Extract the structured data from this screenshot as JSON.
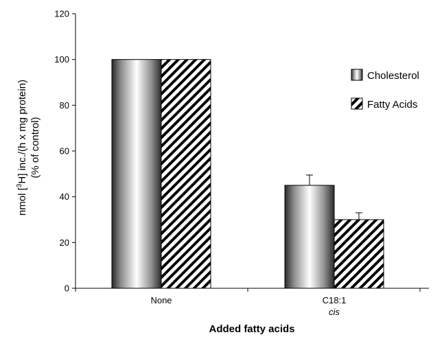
{
  "chart_data": {
    "type": "bar",
    "categories": [
      "None",
      "C18:1"
    ],
    "category_sublabels": [
      "",
      "cis"
    ],
    "series": [
      {
        "name": "Cholesterol",
        "values": [
          100,
          45
        ],
        "errors": [
          0,
          4.5
        ],
        "pattern": "cylinder-gradient"
      },
      {
        "name": "Fatty Acids",
        "values": [
          100,
          30
        ],
        "errors": [
          0,
          3
        ],
        "pattern": "diagonal-hatch"
      }
    ],
    "xlabel": "Added fatty acids",
    "ylabel_line1_pre": "nmol [",
    "ylabel_line1_sup": "3",
    "ylabel_line1_post": "H] inc./(h x mg protein)",
    "ylabel_line2": "(% of control)",
    "ylim": [
      0,
      120
    ],
    "yticks": [
      0,
      20,
      40,
      60,
      80,
      100,
      120
    ],
    "grid": false,
    "legend_position": "right"
  }
}
